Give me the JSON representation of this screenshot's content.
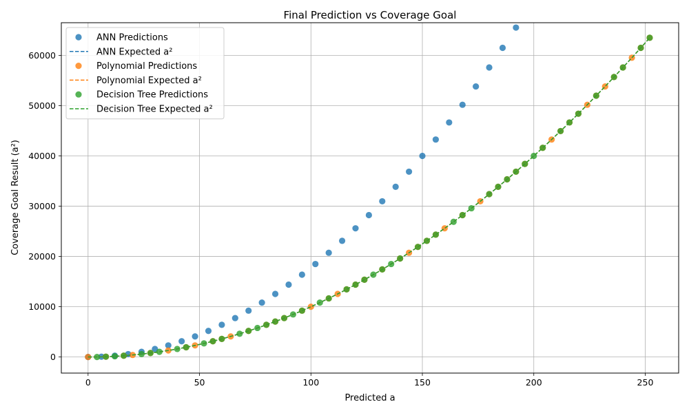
{
  "chart_data": {
    "type": "scatter",
    "title": "Final Prediction vs Coverage Goal",
    "xlabel": "Predicted a",
    "ylabel": "Coverage Goal Result (a²)",
    "xlim": [
      -12,
      265
    ],
    "ylim": [
      -3200,
      66500
    ],
    "xticks": [
      0,
      50,
      100,
      150,
      200,
      250
    ],
    "yticks": [
      0,
      10000,
      20000,
      30000,
      40000,
      50000,
      60000
    ],
    "grid": true,
    "legend_position": "top-left",
    "colors": {
      "ann": "#1f77b4",
      "poly": "#ff7f0e",
      "tree": "#2ca02c"
    },
    "series": [
      {
        "name": "ANN Predictions",
        "kind": "scatter",
        "color": "#1f77b4",
        "points": [
          [
            0,
            0
          ],
          [
            6,
            64
          ],
          [
            12,
            256
          ],
          [
            18,
            576
          ],
          [
            24,
            1024
          ],
          [
            30,
            1600
          ],
          [
            36,
            2304
          ],
          [
            42,
            3136
          ],
          [
            48,
            4096
          ],
          [
            54,
            5184
          ],
          [
            60,
            6400
          ],
          [
            66,
            7744
          ],
          [
            72,
            9216
          ],
          [
            78,
            10816
          ],
          [
            84,
            12544
          ],
          [
            90,
            14400
          ],
          [
            96,
            16384
          ],
          [
            102,
            18496
          ],
          [
            108,
            20736
          ],
          [
            114,
            23104
          ],
          [
            120,
            25600
          ],
          [
            126,
            28224
          ],
          [
            132,
            30976
          ],
          [
            138,
            33856
          ],
          [
            144,
            36864
          ],
          [
            150,
            40000
          ],
          [
            156,
            43264
          ],
          [
            162,
            46656
          ],
          [
            168,
            50176
          ],
          [
            174,
            53824
          ],
          [
            180,
            57600
          ],
          [
            186,
            61504
          ],
          [
            192,
            65536
          ]
        ]
      },
      {
        "name": "ANN Expected a²",
        "kind": "line",
        "color": "#1f77b4",
        "points": [
          [
            0,
            0
          ],
          [
            252,
            63504
          ]
        ]
      },
      {
        "name": "Polynomial Predictions",
        "kind": "scatter",
        "color": "#ff7f0e",
        "points": [
          [
            0,
            0
          ],
          [
            8,
            64
          ],
          [
            16,
            256
          ],
          [
            20,
            400
          ],
          [
            28,
            784
          ],
          [
            36,
            1296
          ],
          [
            44,
            1936
          ],
          [
            48,
            2304
          ],
          [
            56,
            3136
          ],
          [
            60,
            3600
          ],
          [
            64,
            4096
          ],
          [
            72,
            5184
          ],
          [
            80,
            6400
          ],
          [
            84,
            7056
          ],
          [
            88,
            7744
          ],
          [
            96,
            9216
          ],
          [
            100,
            10000
          ],
          [
            108,
            11664
          ],
          [
            112,
            12544
          ],
          [
            116,
            13456
          ],
          [
            120,
            14400
          ],
          [
            124,
            15376
          ],
          [
            132,
            17424
          ],
          [
            140,
            19600
          ],
          [
            144,
            20736
          ],
          [
            148,
            21904
          ],
          [
            152,
            23104
          ],
          [
            156,
            24336
          ],
          [
            160,
            25600
          ],
          [
            168,
            28224
          ],
          [
            176,
            30976
          ],
          [
            180,
            32400
          ],
          [
            184,
            33856
          ],
          [
            188,
            35344
          ],
          [
            192,
            36864
          ],
          [
            196,
            38416
          ],
          [
            204,
            41616
          ],
          [
            208,
            43264
          ],
          [
            212,
            44944
          ],
          [
            216,
            46656
          ],
          [
            220,
            48400
          ],
          [
            224,
            50176
          ],
          [
            228,
            51984
          ],
          [
            232,
            53824
          ],
          [
            236,
            55696
          ],
          [
            240,
            57600
          ],
          [
            244,
            59536
          ],
          [
            248,
            61504
          ],
          [
            252,
            63504
          ]
        ]
      },
      {
        "name": "Polynomial Expected a²",
        "kind": "line",
        "color": "#ff7f0e",
        "points": [
          [
            0,
            0
          ],
          [
            252,
            63504
          ]
        ]
      },
      {
        "name": "Decision Tree Predictions",
        "kind": "scatter",
        "color": "#2ca02c",
        "points": [
          [
            4,
            0
          ],
          [
            8,
            64
          ],
          [
            12,
            144
          ],
          [
            16,
            256
          ],
          [
            24,
            576
          ],
          [
            28,
            784
          ],
          [
            32,
            1024
          ],
          [
            40,
            1600
          ],
          [
            44,
            1936
          ],
          [
            52,
            2704
          ],
          [
            56,
            3136
          ],
          [
            60,
            3600
          ],
          [
            68,
            4624
          ],
          [
            72,
            5184
          ],
          [
            76,
            5776
          ],
          [
            80,
            6400
          ],
          [
            84,
            7056
          ],
          [
            88,
            7744
          ],
          [
            92,
            8464
          ],
          [
            96,
            9216
          ],
          [
            104,
            10816
          ],
          [
            108,
            11664
          ],
          [
            116,
            13456
          ],
          [
            120,
            14400
          ],
          [
            124,
            15376
          ],
          [
            128,
            16384
          ],
          [
            132,
            17424
          ],
          [
            136,
            18496
          ],
          [
            140,
            19600
          ],
          [
            148,
            21904
          ],
          [
            152,
            23104
          ],
          [
            156,
            24336
          ],
          [
            164,
            26896
          ],
          [
            168,
            28224
          ],
          [
            172,
            29584
          ],
          [
            180,
            32400
          ],
          [
            184,
            33856
          ],
          [
            188,
            35344
          ],
          [
            192,
            36864
          ],
          [
            196,
            38416
          ],
          [
            200,
            40000
          ],
          [
            204,
            41616
          ],
          [
            212,
            44944
          ],
          [
            216,
            46656
          ],
          [
            220,
            48400
          ],
          [
            228,
            51984
          ],
          [
            236,
            55696
          ],
          [
            240,
            57600
          ],
          [
            248,
            61504
          ],
          [
            252,
            63504
          ]
        ]
      },
      {
        "name": "Decision Tree Expected a²",
        "kind": "line",
        "color": "#2ca02c",
        "points": [
          [
            0,
            0
          ],
          [
            252,
            63504
          ]
        ]
      }
    ]
  }
}
